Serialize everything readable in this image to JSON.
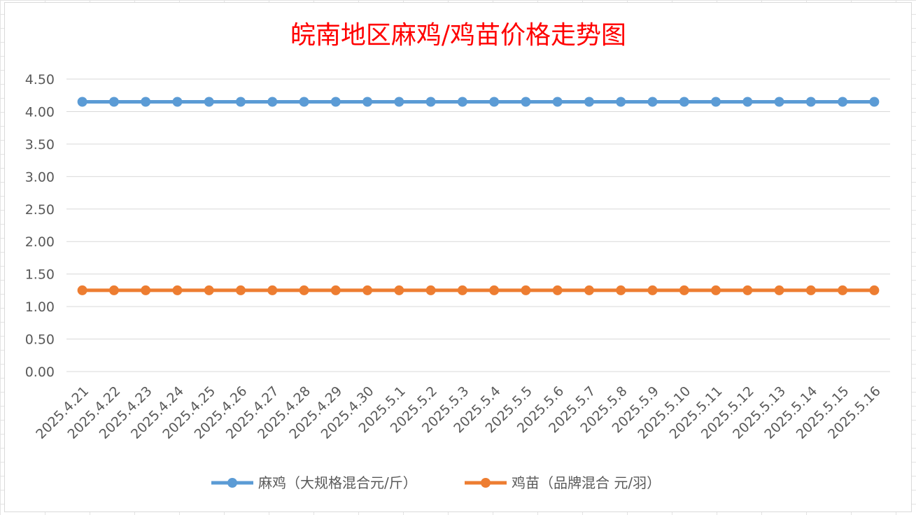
{
  "chart_data": {
    "type": "line",
    "title": "皖南地区麻鸡/鸡苗价格走势图",
    "categories": [
      "2025.4.21",
      "2025.4.22",
      "2025.4.23",
      "2025.4.24",
      "2025.4.25",
      "2025.4.26",
      "2025.4.27",
      "2025.4.28",
      "2025.4.29",
      "2025.4.30",
      "2025.5.1",
      "2025.5.2",
      "2025.5.3",
      "2025.5.4",
      "2025.5.5",
      "2025.5.6",
      "2025.5.7",
      "2025.5.8",
      "2025.5.9",
      "2025.5.10",
      "2025.5.11",
      "2025.5.12",
      "2025.5.13",
      "2025.5.14",
      "2025.5.15",
      "2025.5.16"
    ],
    "series": [
      {
        "name": "麻鸡（大规格混合元/斤）",
        "color": "#5b9bd5",
        "values": [
          4.15,
          4.15,
          4.15,
          4.15,
          4.15,
          4.15,
          4.15,
          4.15,
          4.15,
          4.15,
          4.15,
          4.15,
          4.15,
          4.15,
          4.15,
          4.15,
          4.15,
          4.15,
          4.15,
          4.15,
          4.15,
          4.15,
          4.15,
          4.15,
          4.15,
          4.15
        ]
      },
      {
        "name": "鸡苗（品牌混合 元/羽）",
        "color": "#ed7d31",
        "values": [
          1.25,
          1.25,
          1.25,
          1.25,
          1.25,
          1.25,
          1.25,
          1.25,
          1.25,
          1.25,
          1.25,
          1.25,
          1.25,
          1.25,
          1.25,
          1.25,
          1.25,
          1.25,
          1.25,
          1.25,
          1.25,
          1.25,
          1.25,
          1.25,
          1.25,
          1.25
        ]
      }
    ],
    "yticks": [
      "0.00",
      "0.50",
      "1.00",
      "1.50",
      "2.00",
      "2.50",
      "3.00",
      "3.50",
      "4.00",
      "4.50"
    ],
    "ylim": [
      0,
      4.5
    ],
    "grid": true,
    "legend_position": "bottom"
  }
}
